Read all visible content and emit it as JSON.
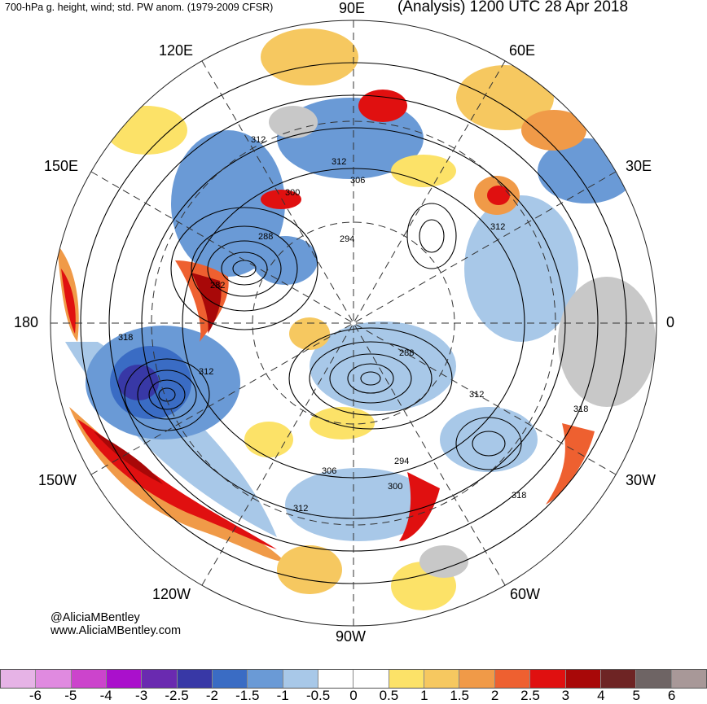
{
  "header": {
    "left_title": "700-hPa g. height, wind; std. PW anom. (1979-2009 CFSR)",
    "right_title": "(Analysis) 1200 UTC 28 Apr 2018"
  },
  "longitude_labels": {
    "e90": "90E",
    "e60": "60E",
    "e120": "120E",
    "e30": "30E",
    "e150": "150E",
    "deg180": "180",
    "deg0": "0",
    "w150": "150W",
    "w30": "30W",
    "w120": "120W",
    "w60": "60W",
    "w90": "90W"
  },
  "contour_labels": {
    "c1": "312",
    "c2": "312",
    "c3": "306",
    "c4": "300",
    "c5": "288",
    "c6": "294",
    "c7": "312",
    "c8": "282",
    "c9": "318",
    "c10": "312",
    "c11": "288",
    "c12": "312",
    "c13": "318",
    "c14": "306",
    "c15": "294",
    "c16": "300",
    "c17": "312",
    "c18": "318"
  },
  "credits": {
    "handle": "@AliciaMBentley",
    "website": "www.AliciaMBentley.com"
  },
  "colorbar": {
    "colors": [
      "#e6b3e6",
      "#e08ae0",
      "#cc44cc",
      "#aa10cc",
      "#6a2ab0",
      "#3838a6",
      "#3a6cc4",
      "#6a9ad6",
      "#a8c8e8",
      "#ffffff",
      "#ffffff",
      "#fce268",
      "#f6c860",
      "#f09a48",
      "#ee6030",
      "#e01010",
      "#a80808",
      "#6e2424",
      "#6e6464",
      "#a89898"
    ],
    "ticks": [
      "-6",
      "-5",
      "-4",
      "-3",
      "-2.5",
      "-2",
      "-1.5",
      "-1",
      "-0.5",
      "0",
      "0.5",
      "1",
      "1.5",
      "2",
      "2.5",
      "3",
      "4",
      "5",
      "6"
    ]
  }
}
